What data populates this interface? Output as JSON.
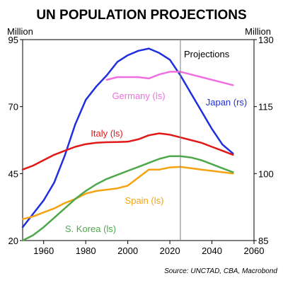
{
  "chart_data": {
    "type": "line",
    "title": "UN POPULATION PROJECTIONS",
    "left_unit": "Million",
    "right_unit": "Million",
    "source": "Source: UNCTAD, CBA, Macrobond",
    "annotation": {
      "label": "Projections",
      "x": 2025
    },
    "x_axis": {
      "min": 1950,
      "max": 2060,
      "ticks": [
        1960,
        1980,
        2000,
        2020,
        2040,
        2060
      ]
    },
    "left_axis": {
      "min": 20,
      "max": 95,
      "ticks": [
        20,
        45,
        70,
        95
      ]
    },
    "right_axis": {
      "min": 85,
      "max": 130,
      "ticks": [
        85,
        100,
        115,
        130
      ]
    },
    "grid": false,
    "series": [
      {
        "name": "Japan (rs)",
        "axis": "right",
        "color": "#1f2fe0",
        "points": [
          [
            1950,
            88
          ],
          [
            1955,
            91
          ],
          [
            1960,
            94
          ],
          [
            1965,
            98
          ],
          [
            1970,
            104
          ],
          [
            1975,
            111
          ],
          [
            1980,
            116.5
          ],
          [
            1985,
            119.5
          ],
          [
            1990,
            122
          ],
          [
            1995,
            125
          ],
          [
            2000,
            126.5
          ],
          [
            2005,
            127.5
          ],
          [
            2010,
            128
          ],
          [
            2015,
            127
          ],
          [
            2020,
            125.5
          ],
          [
            2025,
            122
          ],
          [
            2030,
            118
          ],
          [
            2035,
            114
          ],
          [
            2040,
            110
          ],
          [
            2045,
            106.5
          ],
          [
            2050,
            104.5
          ]
        ]
      },
      {
        "name": "Germany (ls)",
        "axis": "left",
        "color": "#ef6fe0",
        "points": [
          [
            1990,
            80
          ],
          [
            1995,
            81
          ],
          [
            2000,
            81
          ],
          [
            2005,
            81
          ],
          [
            2010,
            80.5
          ],
          [
            2015,
            82
          ],
          [
            2020,
            83
          ],
          [
            2025,
            83
          ],
          [
            2030,
            82
          ],
          [
            2035,
            81
          ],
          [
            2040,
            80
          ],
          [
            2045,
            79
          ],
          [
            2050,
            78
          ]
        ]
      },
      {
        "name": "Italy (ls)",
        "axis": "left",
        "color": "#e01818",
        "points": [
          [
            1950,
            46.5
          ],
          [
            1955,
            48
          ],
          [
            1960,
            50
          ],
          [
            1965,
            52
          ],
          [
            1970,
            53.5
          ],
          [
            1975,
            55
          ],
          [
            1980,
            56
          ],
          [
            1985,
            56.5
          ],
          [
            1990,
            56.7
          ],
          [
            1995,
            56.8
          ],
          [
            2000,
            56.9
          ],
          [
            2005,
            57.8
          ],
          [
            2010,
            59.3
          ],
          [
            2015,
            60
          ],
          [
            2020,
            59.5
          ],
          [
            2025,
            58.5
          ],
          [
            2030,
            57.5
          ],
          [
            2035,
            56.5
          ],
          [
            2040,
            55
          ],
          [
            2045,
            53.5
          ],
          [
            2050,
            52
          ]
        ]
      },
      {
        "name": "Spain (ls)",
        "axis": "left",
        "color": "#f5a311",
        "points": [
          [
            1950,
            28
          ],
          [
            1955,
            29
          ],
          [
            1960,
            30.5
          ],
          [
            1965,
            32
          ],
          [
            1970,
            34
          ],
          [
            1975,
            35.5
          ],
          [
            1980,
            37.5
          ],
          [
            1985,
            38.5
          ],
          [
            1990,
            39
          ],
          [
            1995,
            39.5
          ],
          [
            2000,
            40.5
          ],
          [
            2005,
            43.5
          ],
          [
            2010,
            46.5
          ],
          [
            2015,
            46.5
          ],
          [
            2020,
            47.3
          ],
          [
            2025,
            47.5
          ],
          [
            2030,
            47
          ],
          [
            2035,
            46.5
          ],
          [
            2040,
            46
          ],
          [
            2045,
            45.5
          ],
          [
            2050,
            45
          ]
        ]
      },
      {
        "name": "S. Korea (ls)",
        "axis": "left",
        "color": "#4ea84b",
        "points": [
          [
            1950,
            20
          ],
          [
            1955,
            22
          ],
          [
            1960,
            25
          ],
          [
            1965,
            28.5
          ],
          [
            1970,
            32
          ],
          [
            1975,
            35.5
          ],
          [
            1980,
            38.5
          ],
          [
            1985,
            41
          ],
          [
            1990,
            43
          ],
          [
            1995,
            44.5
          ],
          [
            2000,
            46
          ],
          [
            2005,
            47.5
          ],
          [
            2010,
            49
          ],
          [
            2015,
            50.5
          ],
          [
            2020,
            51.5
          ],
          [
            2025,
            51.5
          ],
          [
            2030,
            51
          ],
          [
            2035,
            50
          ],
          [
            2040,
            48.5
          ],
          [
            2045,
            47
          ],
          [
            2050,
            45.5
          ]
        ]
      }
    ]
  }
}
